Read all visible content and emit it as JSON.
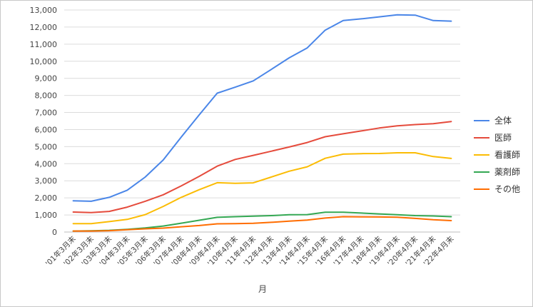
{
  "chart_data": {
    "type": "line",
    "title": "",
    "xlabel": "月",
    "ylabel": "",
    "ylim": [
      0,
      13000
    ],
    "yticks": [
      "0",
      "1,000",
      "2,000",
      "3,000",
      "4,000",
      "5,000",
      "6,000",
      "7,000",
      "8,000",
      "9,000",
      "10,000",
      "11,000",
      "12,000",
      "13,000"
    ],
    "grid": true,
    "legend": "right",
    "categories": [
      "'01年3月末",
      "'02年3月末",
      "'03年3月末",
      "'04年3月末",
      "'05年3月末",
      "'06年3月末",
      "'07年4月末",
      "'08年4月末",
      "'09年4月末",
      "'10年4月末",
      "'11年4月末",
      "'12年4月末",
      "'13年4月末",
      "'14年4月末",
      "'15年4月末",
      "'16年4月末",
      "'17年4月末",
      "'18年4月末",
      "'19年4月末",
      "'20年4月末",
      "'21年4月末",
      "'22年4月末"
    ],
    "series": [
      {
        "name": "全体",
        "color": "#4a86e8",
        "values": [
          1830,
          1800,
          2030,
          2450,
          3220,
          4220,
          5560,
          6860,
          8130,
          8480,
          8850,
          9520,
          10200,
          10780,
          11820,
          12380,
          12480,
          12600,
          12720,
          12700,
          12380,
          12350
        ]
      },
      {
        "name": "医師",
        "color": "#e54b3c",
        "values": [
          1170,
          1140,
          1210,
          1460,
          1800,
          2180,
          2700,
          3260,
          3860,
          4250,
          4490,
          4730,
          4980,
          5240,
          5580,
          5750,
          5920,
          6090,
          6220,
          6290,
          6340,
          6470
        ]
      },
      {
        "name": "看護師",
        "color": "#fbbc04",
        "values": [
          490,
          490,
          610,
          740,
          1020,
          1500,
          2030,
          2480,
          2890,
          2850,
          2880,
          3220,
          3560,
          3820,
          4320,
          4560,
          4590,
          4600,
          4640,
          4640,
          4420,
          4310
        ]
      },
      {
        "name": "薬剤師",
        "color": "#34a853",
        "values": [
          60,
          70,
          100,
          160,
          240,
          350,
          520,
          690,
          860,
          900,
          930,
          960,
          1010,
          1020,
          1160,
          1160,
          1110,
          1060,
          1010,
          960,
          940,
          900
        ]
      },
      {
        "name": "その他",
        "color": "#ff6d01",
        "values": [
          60,
          60,
          80,
          140,
          190,
          230,
          310,
          380,
          480,
          490,
          510,
          570,
          640,
          700,
          820,
          900,
          890,
          880,
          870,
          800,
          720,
          670
        ]
      }
    ]
  }
}
